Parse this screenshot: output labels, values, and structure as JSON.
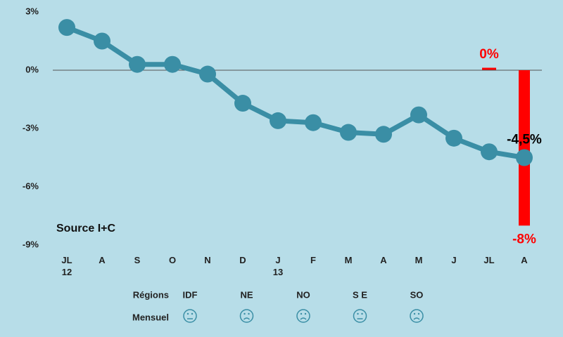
{
  "chart_data": {
    "type": "line",
    "categories": [
      "JL\n12",
      "A",
      "S",
      "O",
      "N",
      "D",
      "J\n13",
      "F",
      "M",
      "A",
      "M",
      "J",
      "JL",
      "A"
    ],
    "series": [
      {
        "color": "#3a8ea5",
        "values": [
          2.2,
          1.5,
          0.3,
          0.3,
          -0.2,
          -1.7,
          -2.6,
          -2.7,
          -3.2,
          -3.3,
          -2.3,
          -3.5,
          -4.2,
          -4.5
        ],
        "value_labels": [
          null,
          null,
          null,
          null,
          null,
          null,
          null,
          null,
          null,
          null,
          null,
          null,
          null,
          "-4,5%"
        ]
      }
    ],
    "ylim": [
      -9,
      3
    ],
    "yticks": [
      {
        "value": -9,
        "label": "-9%"
      },
      {
        "value": -6,
        "label": "-6%"
      },
      {
        "value": -3,
        "label": "-3%"
      },
      {
        "value": 0,
        "label": "0%"
      },
      {
        "value": 3,
        "label": "3%"
      }
    ],
    "grid": false,
    "zero_line": true,
    "range": {
      "high": 0,
      "low": -8,
      "high_label": "0%",
      "low_label": "-8%",
      "color": "#ff0000"
    },
    "annotation": "Source I+C",
    "regions": {
      "label": "Régions",
      "mood_label": "Mensuel",
      "names": [
        "IDF",
        "NE",
        "NO",
        "S E",
        "SO"
      ],
      "moods": [
        "neutral",
        "sad",
        "sad",
        "neutral",
        "sad"
      ]
    }
  }
}
